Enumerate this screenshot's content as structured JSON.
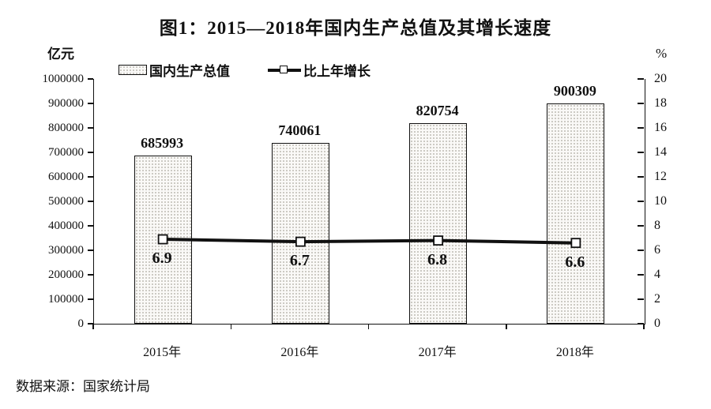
{
  "chart_data": {
    "type": "bar+line",
    "title": "图1：2015—2018年国内生产总值及其增长速度",
    "categories": [
      "2015年",
      "2016年",
      "2017年",
      "2018年"
    ],
    "series": [
      {
        "name": "国内生产总值",
        "type": "bar",
        "axis": "left",
        "values": [
          685993,
          740061,
          820754,
          900309
        ]
      },
      {
        "name": "比上年增长",
        "type": "line",
        "axis": "right",
        "values": [
          6.9,
          6.7,
          6.8,
          6.6
        ]
      }
    ],
    "left_axis": {
      "label": "亿元",
      "min": 0,
      "max": 1000000,
      "step": 100000
    },
    "right_axis": {
      "label": "%",
      "min": 0,
      "max": 20,
      "step": 2
    },
    "legend_position": "top",
    "grid": false,
    "bar_color": "#faf9f7",
    "bar_pattern_color": "#c4c1ba",
    "line_color": "#111111",
    "source": "数据来源：国家统计局"
  }
}
